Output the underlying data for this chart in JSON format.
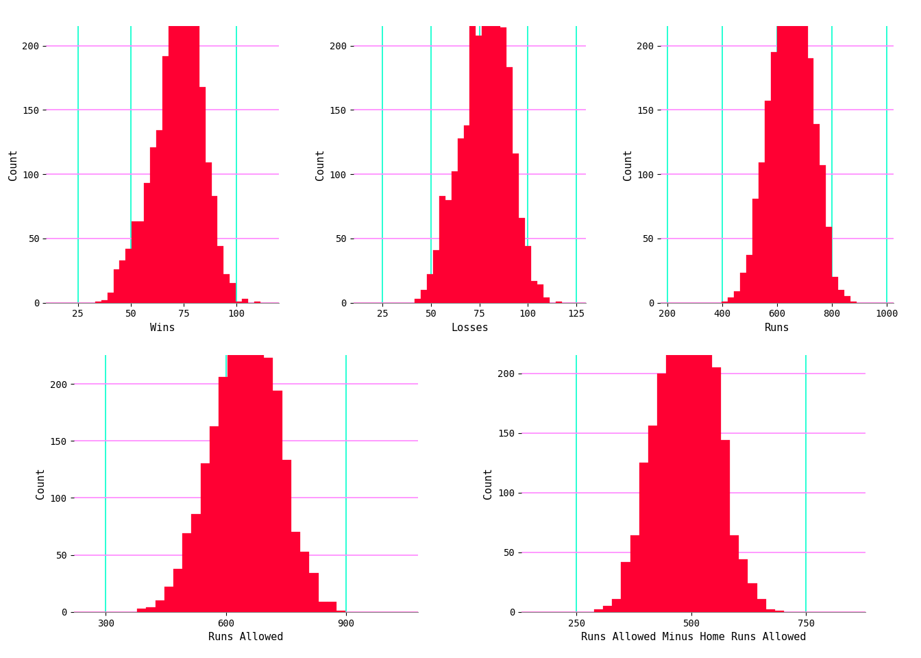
{
  "bar_color": "#FF0033",
  "bar_edgecolor": "#FF0033",
  "background_color": "#FFFFFF",
  "grid_color_x": "#00FFCC",
  "grid_color_y": "#FF88FF",
  "grid_linewidth": 1.2,
  "font_size_label": 11,
  "font_size_tick": 10,
  "seed": 42,
  "n_samples": 2496,
  "subplot_configs": [
    {
      "xlabel": "Wins",
      "xlim": [
        10,
        120
      ],
      "ylim": [
        0,
        215
      ],
      "xticks": [
        25,
        50,
        75,
        100
      ],
      "yticks": [
        0,
        50,
        100,
        150,
        200
      ],
      "bins": 38,
      "mean": 81,
      "std": 11.5,
      "clip_min": 19,
      "clip_max": 116
    },
    {
      "xlabel": "Losses",
      "xlim": [
        10,
        130
      ],
      "ylim": [
        0,
        215
      ],
      "xticks": [
        25,
        50,
        75,
        100,
        125
      ],
      "yticks": [
        0,
        50,
        100,
        150,
        200
      ],
      "bins": 38,
      "mean": 81,
      "std": 11.5,
      "clip_min": 19,
      "clip_max": 116
    },
    {
      "xlabel": "Runs",
      "xlim": [
        175,
        1025
      ],
      "ylim": [
        0,
        215
      ],
      "xticks": [
        200,
        400,
        600,
        800,
        1000
      ],
      "yticks": [
        0,
        50,
        100,
        150,
        200
      ],
      "bins": 38,
      "mean": 690,
      "std": 78,
      "clip_min": 210,
      "clip_max": 1010
    },
    {
      "xlabel": "Runs Allowed",
      "xlim": [
        220,
        1080
      ],
      "ylim": [
        0,
        225
      ],
      "xticks": [
        300,
        600,
        900
      ],
      "yticks": [
        0,
        50,
        100,
        150,
        200
      ],
      "bins": 38,
      "mean": 690,
      "std": 82,
      "clip_min": 230,
      "clip_max": 1060
    },
    {
      "xlabel": "Runs Allowed Minus Home Runs Allowed",
      "xlim": [
        130,
        880
      ],
      "ylim": [
        0,
        215
      ],
      "xticks": [
        250,
        500,
        750
      ],
      "yticks": [
        0,
        50,
        100,
        150,
        200
      ],
      "bins": 38,
      "mean": 510,
      "std": 65,
      "clip_min": 150,
      "clip_max": 860
    }
  ]
}
